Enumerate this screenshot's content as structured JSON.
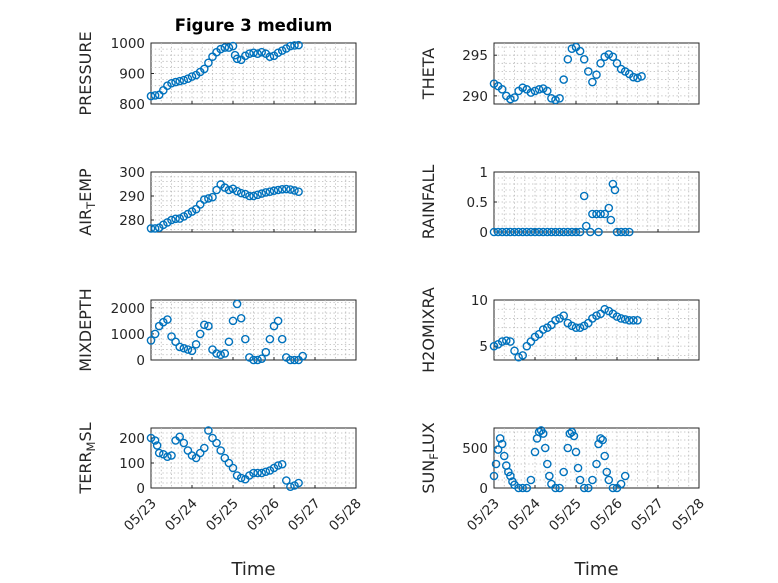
{
  "chart_data": [
    {
      "type": "scatter",
      "title": "Figure 3 medium",
      "xlabel": "",
      "ylabel": "PRESSURE",
      "xlim": [
        0,
        5
      ],
      "ylim": [
        800,
        1000
      ],
      "yticks": [
        800,
        900,
        1000
      ],
      "x_ticklabels": [],
      "xlabel_shown": false,
      "points": [
        [
          0.0,
          826
        ],
        [
          0.1,
          828
        ],
        [
          0.2,
          830
        ],
        [
          0.3,
          845
        ],
        [
          0.4,
          860
        ],
        [
          0.5,
          868
        ],
        [
          0.6,
          872
        ],
        [
          0.7,
          875
        ],
        [
          0.8,
          878
        ],
        [
          0.9,
          883
        ],
        [
          1.0,
          890
        ],
        [
          1.1,
          895
        ],
        [
          1.2,
          905
        ],
        [
          1.3,
          915
        ],
        [
          1.4,
          935
        ],
        [
          1.5,
          955
        ],
        [
          1.6,
          970
        ],
        [
          1.7,
          980
        ],
        [
          1.8,
          985
        ],
        [
          1.9,
          985
        ],
        [
          2.0,
          990
        ],
        [
          2.05,
          960
        ],
        [
          2.1,
          948
        ],
        [
          2.2,
          945
        ],
        [
          2.3,
          958
        ],
        [
          2.4,
          965
        ],
        [
          2.5,
          968
        ],
        [
          2.6,
          965
        ],
        [
          2.7,
          970
        ],
        [
          2.8,
          965
        ],
        [
          2.9,
          955
        ],
        [
          3.0,
          958
        ],
        [
          3.1,
          968
        ],
        [
          3.2,
          975
        ],
        [
          3.3,
          982
        ],
        [
          3.4,
          990
        ],
        [
          3.5,
          992
        ],
        [
          3.6,
          993
        ]
      ]
    },
    {
      "type": "scatter",
      "title": "",
      "xlabel": "",
      "ylabel": "THETA",
      "xlim": [
        0,
        5
      ],
      "ylim": [
        289,
        296.5
      ],
      "yticks": [
        290,
        295
      ],
      "x_ticklabels": [],
      "xlabel_shown": false,
      "points": [
        [
          0.0,
          291.5
        ],
        [
          0.1,
          291.2
        ],
        [
          0.2,
          290.8
        ],
        [
          0.3,
          290.0
        ],
        [
          0.4,
          289.6
        ],
        [
          0.5,
          289.8
        ],
        [
          0.6,
          290.6
        ],
        [
          0.7,
          291.0
        ],
        [
          0.8,
          290.8
        ],
        [
          0.9,
          290.4
        ],
        [
          1.0,
          290.6
        ],
        [
          1.1,
          290.8
        ],
        [
          1.2,
          290.9
        ],
        [
          1.3,
          290.6
        ],
        [
          1.4,
          289.7
        ],
        [
          1.5,
          289.5
        ],
        [
          1.6,
          289.7
        ],
        [
          1.7,
          292.0
        ],
        [
          1.8,
          294.5
        ],
        [
          1.9,
          295.8
        ],
        [
          2.0,
          296.0
        ],
        [
          2.1,
          295.5
        ],
        [
          2.2,
          294.5
        ],
        [
          2.3,
          293.0
        ],
        [
          2.4,
          291.7
        ],
        [
          2.5,
          292.6
        ],
        [
          2.6,
          294.0
        ],
        [
          2.7,
          294.8
        ],
        [
          2.8,
          295.1
        ],
        [
          2.9,
          294.8
        ],
        [
          3.0,
          294.0
        ],
        [
          3.1,
          293.3
        ],
        [
          3.2,
          293.0
        ],
        [
          3.3,
          292.7
        ],
        [
          3.4,
          292.3
        ],
        [
          3.5,
          292.2
        ],
        [
          3.6,
          292.4
        ]
      ]
    },
    {
      "type": "scatter",
      "title": "",
      "xlabel": "",
      "ylabel": "AIR_TEMP",
      "xlim": [
        0,
        5
      ],
      "ylim": [
        275,
        300
      ],
      "yticks": [
        280,
        290,
        300
      ],
      "x_ticklabels": [],
      "xlabel_shown": false,
      "points": [
        [
          0.0,
          276.5
        ],
        [
          0.1,
          276.5
        ],
        [
          0.2,
          276.8
        ],
        [
          0.3,
          278.0
        ],
        [
          0.4,
          279.0
        ],
        [
          0.5,
          280.0
        ],
        [
          0.6,
          280.5
        ],
        [
          0.7,
          280.6
        ],
        [
          0.8,
          281.5
        ],
        [
          0.9,
          282.5
        ],
        [
          1.0,
          283.5
        ],
        [
          1.1,
          284.5
        ],
        [
          1.2,
          286.5
        ],
        [
          1.3,
          288.5
        ],
        [
          1.4,
          289.0
        ],
        [
          1.5,
          289.5
        ],
        [
          1.6,
          292.5
        ],
        [
          1.7,
          294.8
        ],
        [
          1.8,
          293.5
        ],
        [
          1.9,
          292.5
        ],
        [
          2.0,
          293.0
        ],
        [
          2.1,
          292.0
        ],
        [
          2.2,
          291.2
        ],
        [
          2.3,
          290.8
        ],
        [
          2.4,
          290.0
        ],
        [
          2.5,
          290.0
        ],
        [
          2.6,
          290.5
        ],
        [
          2.7,
          291.0
        ],
        [
          2.8,
          291.5
        ],
        [
          2.9,
          291.8
        ],
        [
          3.0,
          292.2
        ],
        [
          3.1,
          292.5
        ],
        [
          3.2,
          292.8
        ],
        [
          3.3,
          292.9
        ],
        [
          3.4,
          292.7
        ],
        [
          3.5,
          292.3
        ],
        [
          3.6,
          291.8
        ]
      ]
    },
    {
      "type": "scatter",
      "title": "",
      "xlabel": "",
      "ylabel": "RAINFALL",
      "xlim": [
        0,
        5
      ],
      "ylim": [
        0,
        1
      ],
      "yticks": [
        0,
        0.5,
        1
      ],
      "x_ticklabels": [],
      "xlabel_shown": false,
      "points": [
        [
          0.0,
          0.0
        ],
        [
          0.1,
          0.0
        ],
        [
          0.2,
          0.0
        ],
        [
          0.3,
          0.0
        ],
        [
          0.4,
          0.0
        ],
        [
          0.5,
          0.0
        ],
        [
          0.6,
          0.0
        ],
        [
          0.7,
          0.0
        ],
        [
          0.8,
          0.0
        ],
        [
          0.9,
          0.0
        ],
        [
          1.0,
          0.0
        ],
        [
          1.1,
          0.0
        ],
        [
          1.2,
          0.0
        ],
        [
          1.3,
          0.0
        ],
        [
          1.4,
          0.0
        ],
        [
          1.5,
          0.0
        ],
        [
          1.6,
          0.0
        ],
        [
          1.7,
          0.0
        ],
        [
          1.8,
          0.0
        ],
        [
          1.9,
          0.0
        ],
        [
          2.0,
          0.0
        ],
        [
          2.1,
          0.0
        ],
        [
          2.2,
          0.6
        ],
        [
          2.25,
          0.1
        ],
        [
          2.35,
          0.0
        ],
        [
          2.4,
          0.3
        ],
        [
          2.5,
          0.3
        ],
        [
          2.55,
          0.0
        ],
        [
          2.6,
          0.3
        ],
        [
          2.7,
          0.3
        ],
        [
          2.8,
          0.4
        ],
        [
          2.85,
          0.2
        ],
        [
          2.9,
          0.8
        ],
        [
          2.95,
          0.7
        ],
        [
          3.0,
          0.0
        ],
        [
          3.1,
          0.0
        ],
        [
          3.2,
          0.0
        ],
        [
          3.3,
          0.0
        ]
      ]
    },
    {
      "type": "scatter",
      "title": "",
      "xlabel": "",
      "ylabel": "MIXDEPTH",
      "xlim": [
        0,
        5
      ],
      "ylim": [
        0,
        2300
      ],
      "yticks": [
        0,
        1000,
        2000
      ],
      "x_ticklabels": [],
      "xlabel_shown": false,
      "points": [
        [
          0.0,
          750
        ],
        [
          0.1,
          1000
        ],
        [
          0.2,
          1300
        ],
        [
          0.3,
          1450
        ],
        [
          0.4,
          1550
        ],
        [
          0.5,
          900
        ],
        [
          0.6,
          700
        ],
        [
          0.7,
          500
        ],
        [
          0.8,
          450
        ],
        [
          0.9,
          400
        ],
        [
          1.0,
          350
        ],
        [
          1.1,
          600
        ],
        [
          1.2,
          1000
        ],
        [
          1.3,
          1350
        ],
        [
          1.4,
          1300
        ],
        [
          1.5,
          400
        ],
        [
          1.6,
          250
        ],
        [
          1.7,
          200
        ],
        [
          1.8,
          250
        ],
        [
          1.9,
          700
        ],
        [
          2.0,
          1500
        ],
        [
          2.1,
          2150
        ],
        [
          2.2,
          1600
        ],
        [
          2.3,
          800
        ],
        [
          2.4,
          100
        ],
        [
          2.5,
          0
        ],
        [
          2.6,
          0
        ],
        [
          2.7,
          50
        ],
        [
          2.8,
          300
        ],
        [
          2.9,
          800
        ],
        [
          3.0,
          1300
        ],
        [
          3.1,
          1500
        ],
        [
          3.2,
          800
        ],
        [
          3.3,
          100
        ],
        [
          3.4,
          0
        ],
        [
          3.5,
          0
        ],
        [
          3.6,
          0
        ],
        [
          3.7,
          150
        ]
      ]
    },
    {
      "type": "scatter",
      "title": "",
      "xlabel": "",
      "ylabel": "H2OMIXRA",
      "xlim": [
        0,
        5
      ],
      "ylim": [
        3.5,
        10
      ],
      "yticks": [
        5,
        10
      ],
      "x_ticklabels": [],
      "xlabel_shown": false,
      "points": [
        [
          0.0,
          5.0
        ],
        [
          0.1,
          5.2
        ],
        [
          0.2,
          5.5
        ],
        [
          0.3,
          5.6
        ],
        [
          0.4,
          5.5
        ],
        [
          0.5,
          4.5
        ],
        [
          0.6,
          3.8
        ],
        [
          0.7,
          4.0
        ],
        [
          0.8,
          5.0
        ],
        [
          0.9,
          5.5
        ],
        [
          1.0,
          6.0
        ],
        [
          1.1,
          6.3
        ],
        [
          1.2,
          6.8
        ],
        [
          1.3,
          7.0
        ],
        [
          1.4,
          7.3
        ],
        [
          1.5,
          7.8
        ],
        [
          1.6,
          8.0
        ],
        [
          1.7,
          8.3
        ],
        [
          1.8,
          7.5
        ],
        [
          1.9,
          7.2
        ],
        [
          2.0,
          7.0
        ],
        [
          2.1,
          7.0
        ],
        [
          2.2,
          7.2
        ],
        [
          2.3,
          7.5
        ],
        [
          2.4,
          8.0
        ],
        [
          2.5,
          8.3
        ],
        [
          2.6,
          8.5
        ],
        [
          2.7,
          9.0
        ],
        [
          2.8,
          8.8
        ],
        [
          2.9,
          8.5
        ],
        [
          3.0,
          8.2
        ],
        [
          3.1,
          8.0
        ],
        [
          3.2,
          7.9
        ],
        [
          3.3,
          7.8
        ],
        [
          3.4,
          7.8
        ],
        [
          3.5,
          7.8
        ]
      ]
    },
    {
      "type": "scatter",
      "title": "",
      "xlabel": "Time",
      "ylabel": "TERR_MSL",
      "xlim": [
        0,
        5
      ],
      "ylim": [
        0,
        240
      ],
      "yticks": [
        0,
        100,
        200
      ],
      "x_ticklabels": [
        "05/23",
        "05/24",
        "05/25",
        "05/26",
        "05/27",
        "05/28"
      ],
      "xlabel_shown": true,
      "points": [
        [
          0.0,
          200
        ],
        [
          0.1,
          190
        ],
        [
          0.15,
          170
        ],
        [
          0.2,
          140
        ],
        [
          0.3,
          135
        ],
        [
          0.4,
          125
        ],
        [
          0.5,
          130
        ],
        [
          0.6,
          190
        ],
        [
          0.7,
          205
        ],
        [
          0.8,
          180
        ],
        [
          0.9,
          150
        ],
        [
          1.0,
          130
        ],
        [
          1.1,
          120
        ],
        [
          1.2,
          140
        ],
        [
          1.3,
          160
        ],
        [
          1.4,
          230
        ],
        [
          1.5,
          200
        ],
        [
          1.6,
          180
        ],
        [
          1.7,
          150
        ],
        [
          1.8,
          120
        ],
        [
          1.9,
          100
        ],
        [
          2.0,
          80
        ],
        [
          2.1,
          50
        ],
        [
          2.2,
          40
        ],
        [
          2.3,
          35
        ],
        [
          2.4,
          50
        ],
        [
          2.5,
          60
        ],
        [
          2.6,
          60
        ],
        [
          2.7,
          60
        ],
        [
          2.8,
          65
        ],
        [
          2.9,
          70
        ],
        [
          3.0,
          80
        ],
        [
          3.1,
          90
        ],
        [
          3.2,
          95
        ],
        [
          3.3,
          30
        ],
        [
          3.4,
          5
        ],
        [
          3.5,
          10
        ],
        [
          3.6,
          20
        ]
      ]
    },
    {
      "type": "scatter",
      "title": "",
      "xlabel": "Time",
      "ylabel": "SUN_FLUX",
      "xlim": [
        0,
        5
      ],
      "ylim": [
        0,
        750
      ],
      "yticks": [
        0,
        500
      ],
      "x_ticklabels": [
        "05/23",
        "05/24",
        "05/25",
        "05/26",
        "05/27",
        "05/28"
      ],
      "xlabel_shown": true,
      "points": [
        [
          0.0,
          150
        ],
        [
          0.05,
          300
        ],
        [
          0.1,
          480
        ],
        [
          0.15,
          620
        ],
        [
          0.2,
          550
        ],
        [
          0.25,
          400
        ],
        [
          0.3,
          280
        ],
        [
          0.35,
          200
        ],
        [
          0.4,
          150
        ],
        [
          0.45,
          80
        ],
        [
          0.5,
          40
        ],
        [
          0.6,
          0
        ],
        [
          0.7,
          0
        ],
        [
          0.8,
          0
        ],
        [
          0.9,
          100
        ],
        [
          1.0,
          450
        ],
        [
          1.05,
          620
        ],
        [
          1.1,
          700
        ],
        [
          1.15,
          720
        ],
        [
          1.2,
          680
        ],
        [
          1.25,
          500
        ],
        [
          1.3,
          300
        ],
        [
          1.35,
          150
        ],
        [
          1.4,
          50
        ],
        [
          1.5,
          0
        ],
        [
          1.6,
          0
        ],
        [
          1.7,
          200
        ],
        [
          1.8,
          500
        ],
        [
          1.85,
          680
        ],
        [
          1.9,
          700
        ],
        [
          1.95,
          650
        ],
        [
          2.0,
          450
        ],
        [
          2.05,
          250
        ],
        [
          2.1,
          100
        ],
        [
          2.2,
          0
        ],
        [
          2.3,
          0
        ],
        [
          2.4,
          100
        ],
        [
          2.5,
          300
        ],
        [
          2.55,
          550
        ],
        [
          2.6,
          620
        ],
        [
          2.65,
          600
        ],
        [
          2.7,
          400
        ],
        [
          2.75,
          200
        ],
        [
          2.8,
          100
        ],
        [
          2.9,
          0
        ],
        [
          3.0,
          0
        ],
        [
          3.1,
          50
        ],
        [
          3.2,
          150
        ]
      ]
    }
  ],
  "colors": {
    "marker": "#0072bd",
    "axis": "#262626",
    "grid": "#b8b8b8"
  }
}
